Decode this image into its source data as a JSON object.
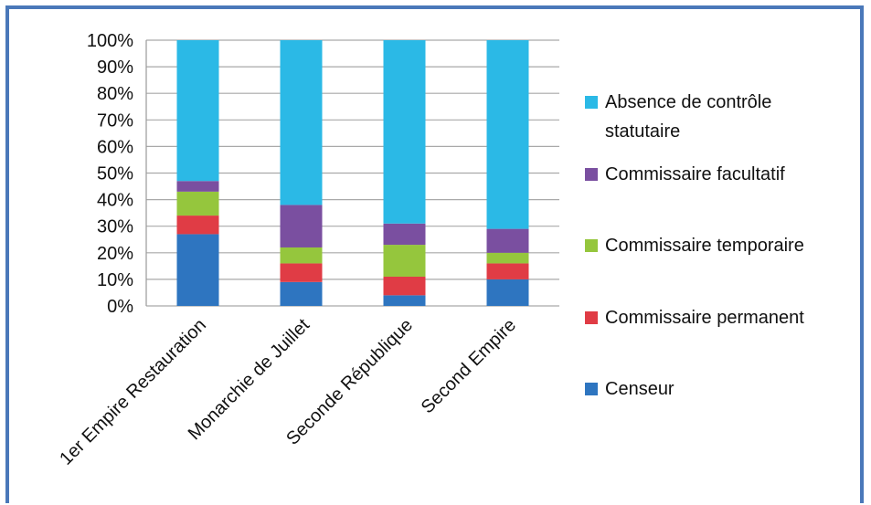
{
  "chart_data": {
    "type": "bar",
    "stacked": true,
    "percent": true,
    "categories": [
      "1er Empire Restauration",
      "Monarchie de Juillet",
      "Seconde République",
      "Second Empire"
    ],
    "series": [
      {
        "name": "Censeur",
        "color": "#2e75c0",
        "values": [
          27,
          9,
          4,
          10
        ]
      },
      {
        "name": "Commissaire permanent",
        "color": "#e03c45",
        "values": [
          7,
          7,
          7,
          6
        ]
      },
      {
        "name": "Commissaire temporaire",
        "color": "#95c63d",
        "values": [
          9,
          6,
          12,
          4
        ]
      },
      {
        "name": "Commissaire facultatif",
        "color": "#7a4fa0",
        "values": [
          4,
          16,
          8,
          9
        ]
      },
      {
        "name": "Absence de contrôle statutaire",
        "color": "#2bb9e6",
        "values": [
          53,
          62,
          69,
          71
        ]
      }
    ],
    "ylim": [
      0,
      100
    ],
    "yticks": [
      "0%",
      "10%",
      "20%",
      "30%",
      "40%",
      "50%",
      "60%",
      "70%",
      "80%",
      "90%",
      "100%"
    ],
    "legend_position": "right",
    "legend_lines": [
      [
        "Absence de contrôle",
        "statutaire"
      ],
      [
        "Commissaire facultatif"
      ],
      [
        "Commissaire temporaire"
      ],
      [
        "Commissaire permanent"
      ],
      [
        "Censeur"
      ]
    ],
    "grid": true
  }
}
